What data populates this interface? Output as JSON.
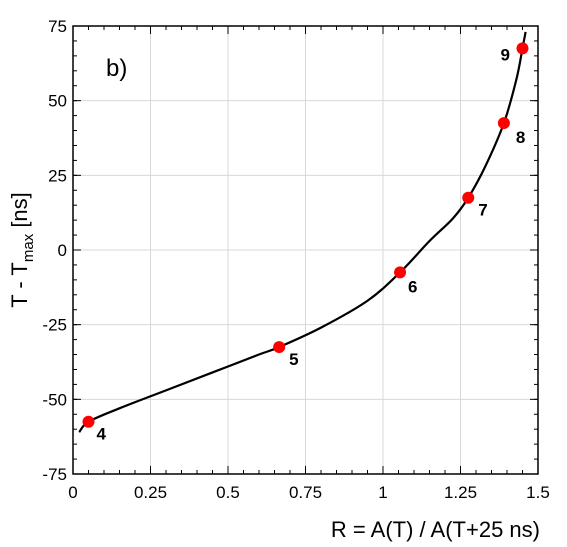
{
  "chart_data": {
    "type": "scatter",
    "panel_label": "b)",
    "xlabel": "R = A(T) / A(T+25 ns)",
    "ylabel_main": "T - T",
    "ylabel_sub": "max",
    "ylabel_unit": " [ns]",
    "xlim": [
      0,
      1.5
    ],
    "ylim": [
      -75,
      75
    ],
    "x_ticks": [
      0,
      0.25,
      0.5,
      0.75,
      1,
      1.25,
      1.5
    ],
    "x_tick_labels": [
      "0",
      "0.25",
      "0.5",
      "0.75",
      "1",
      "1.25",
      "1.5"
    ],
    "y_ticks": [
      -75,
      -50,
      -25,
      0,
      25,
      50,
      75
    ],
    "y_tick_labels": [
      "-75",
      "-50",
      "-25",
      "0",
      "25",
      "50",
      "75"
    ],
    "grid": true,
    "points": [
      {
        "label": "4",
        "x": 0.05,
        "y": -57.5
      },
      {
        "label": "5",
        "x": 0.665,
        "y": -32.5
      },
      {
        "label": "6",
        "x": 1.055,
        "y": -7.5
      },
      {
        "label": "7",
        "x": 1.275,
        "y": 17.5
      },
      {
        "label": "8",
        "x": 1.39,
        "y": 42.5
      },
      {
        "label": "9",
        "x": 1.45,
        "y": 67.5
      }
    ],
    "fit_curve": {
      "x": [
        0.02,
        0.05,
        0.15,
        0.3,
        0.45,
        0.6,
        0.665,
        0.8,
        0.95,
        1.055,
        1.15,
        1.225,
        1.275,
        1.33,
        1.39,
        1.43,
        1.45,
        1.46
      ],
      "y": [
        -61,
        -57.5,
        -53,
        -47,
        -41,
        -35,
        -32.5,
        -26,
        -17,
        -7.5,
        3,
        10.5,
        17.5,
        28,
        42.5,
        57,
        67.5,
        73
      ]
    },
    "colors": {
      "points": "#ff0000",
      "curve": "#000000",
      "grid": "#d8d8d8"
    }
  }
}
